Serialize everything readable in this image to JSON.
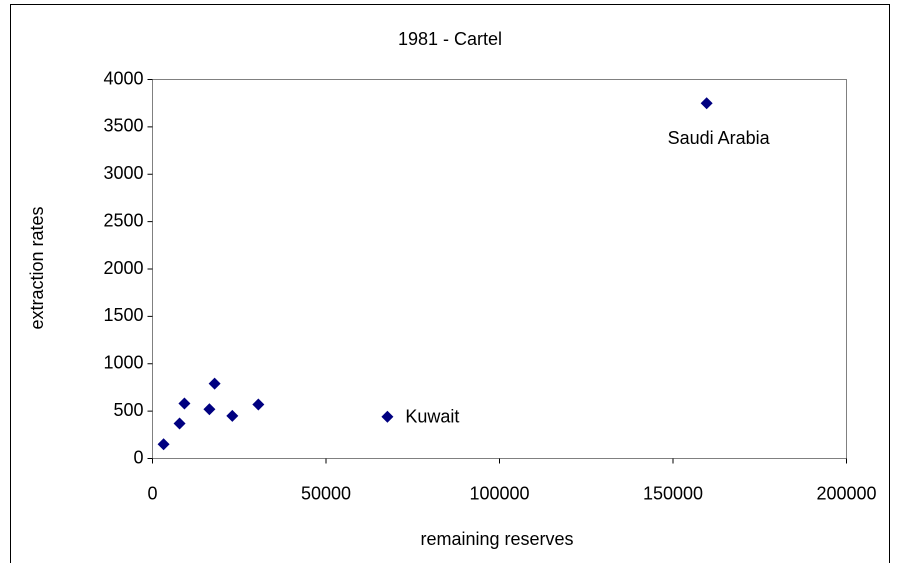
{
  "chart_data": {
    "type": "scatter",
    "title": "1981 - Cartel",
    "x_label": "remaining reserves",
    "y_label": "extraction rates",
    "series": [
      {
        "color": "#000080",
        "x": [
          3200,
          7800,
          9200,
          17900,
          16400,
          23000,
          30500,
          67700,
          159700
        ],
        "values": [
          150,
          370,
          580,
          790,
          520,
          450,
          570,
          440,
          3750
        ],
        "point_labels": [
          null,
          null,
          null,
          null,
          null,
          null,
          null,
          "Kuwait",
          "Saudi Arabia"
        ]
      }
    ],
    "xlim": [
      0,
      200000
    ],
    "xticks": [
      0,
      50000,
      100000,
      150000,
      200000
    ],
    "ylim": [
      0,
      4000
    ],
    "yticks": [
      0,
      500,
      1000,
      1500,
      2000,
      2500,
      3000,
      3500,
      4000
    ],
    "grid": false
  }
}
